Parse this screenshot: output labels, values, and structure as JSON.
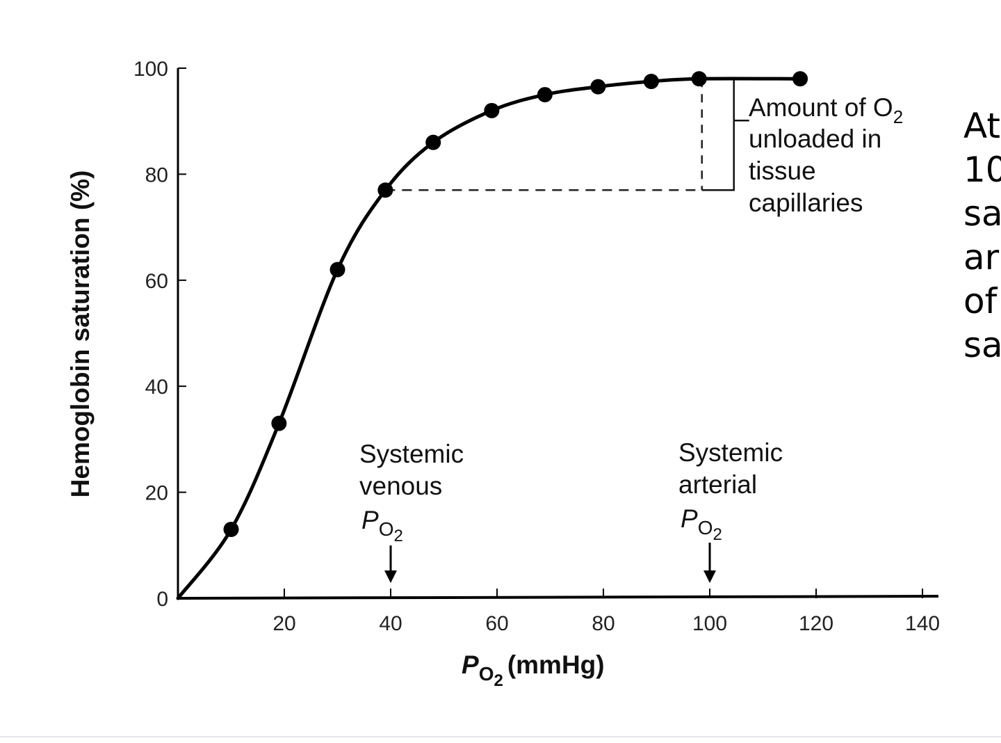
{
  "chart_data": {
    "type": "line",
    "xlabel_main": "P",
    "xlabel_sub": "O",
    "xlabel_subsub": "2",
    "xlabel_unit": "(mmHg)",
    "ylabel": "Hemoglobin saturation (%)",
    "xlim": [
      0,
      143
    ],
    "ylim": [
      0,
      100
    ],
    "x_ticks": [
      20,
      40,
      60,
      80,
      100,
      120,
      140
    ],
    "y_ticks": [
      0,
      20,
      40,
      60,
      80,
      100
    ],
    "series": [
      {
        "x": [
          10,
          19,
          30,
          39,
          48,
          59,
          69,
          79,
          89,
          98,
          117
        ],
        "y": [
          13,
          33,
          62,
          77,
          86,
          92,
          95,
          96.5,
          97.5,
          98,
          98
        ]
      }
    ],
    "annotations": {
      "venous": {
        "lines": [
          "Systemic",
          "venous"
        ],
        "symbol": "P",
        "sub": "O",
        "subsub": "2",
        "x": 40
      },
      "arterial": {
        "lines": [
          "Systemic",
          "arterial"
        ],
        "symbol": "P",
        "sub": "O",
        "subsub": "2",
        "x": 100
      },
      "unload": {
        "line1": "Amount of O",
        "line1_sub": "2",
        "line2": "unloaded in",
        "line3": "tissue",
        "line4": "capillaries",
        "from_y": 77,
        "to_y": 98,
        "x_from": 39,
        "x_to": 98
      }
    }
  },
  "side_text": [
    "At",
    "10",
    "sa",
    "ar",
    "of",
    "sa"
  ]
}
